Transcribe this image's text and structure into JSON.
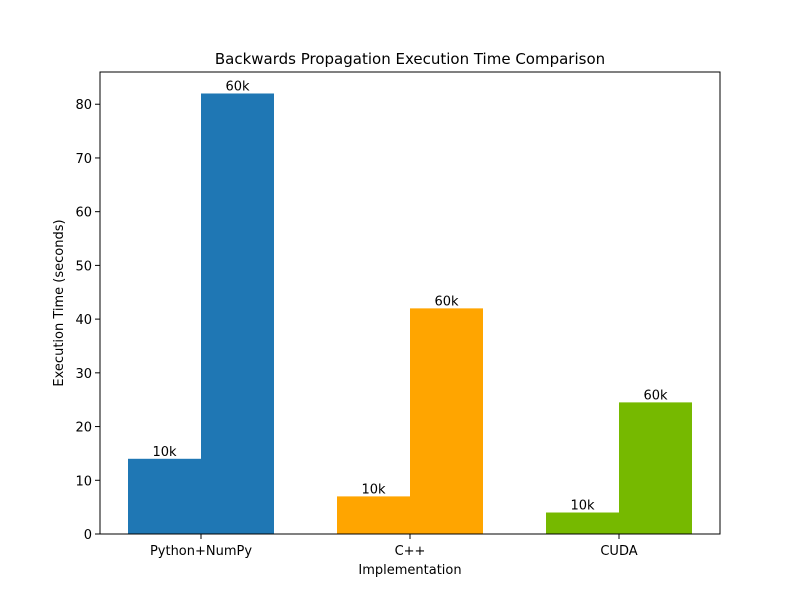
{
  "chart_data": {
    "type": "bar",
    "title": "Backwards Propagation Execution Time Comparison",
    "xlabel": "Implementation",
    "ylabel": "Execution Time (seconds)",
    "categories": [
      "Python+NumPy",
      "C++",
      "CUDA"
    ],
    "colors": [
      "#1f77b4",
      "#ffa500",
      "#76b900"
    ],
    "bars": [
      {
        "category": "Python+NumPy",
        "label": "10k",
        "value": 14
      },
      {
        "category": "Python+NumPy",
        "label": "60k",
        "value": 82
      },
      {
        "category": "C++",
        "label": "10k",
        "value": 7
      },
      {
        "category": "C++",
        "label": "60k",
        "value": 42
      },
      {
        "category": "CUDA",
        "label": "10k",
        "value": 4
      },
      {
        "category": "CUDA",
        "label": "60k",
        "value": 24.5
      }
    ],
    "ylim": [
      0,
      86
    ],
    "yticks": [
      0,
      10,
      20,
      30,
      40,
      50,
      60,
      70,
      80
    ],
    "grid": false,
    "legend": false
  }
}
